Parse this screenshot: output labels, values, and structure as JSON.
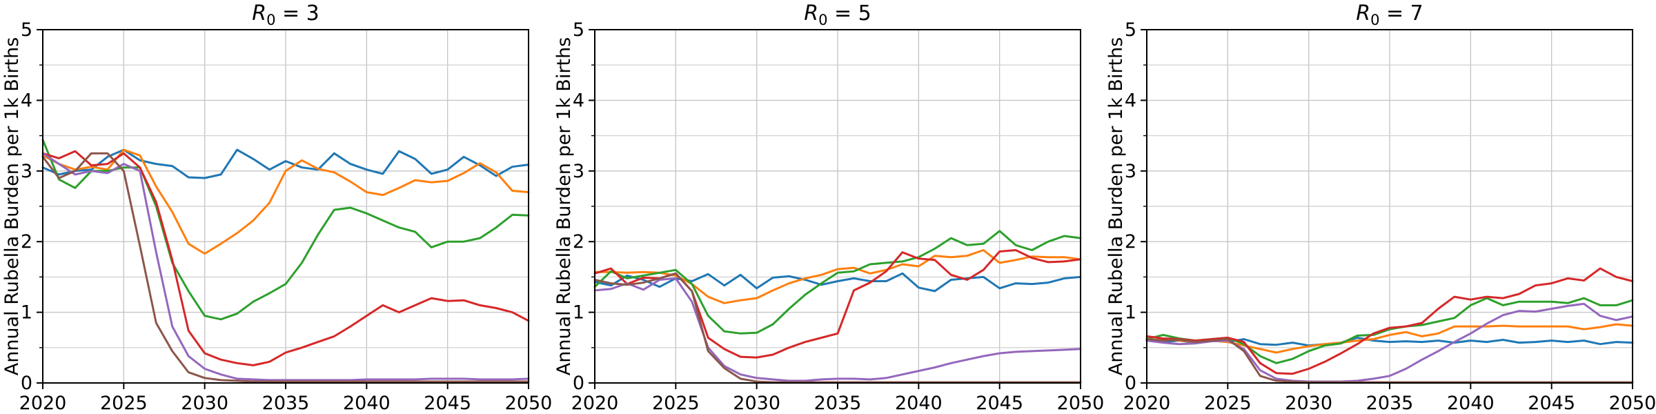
{
  "ylabel": "Annual Rubella Burden per 1k Births",
  "axes": {
    "xlim": [
      2020,
      2050
    ],
    "ylim": [
      0,
      5
    ],
    "x_ticks": [
      2020,
      2025,
      2030,
      2035,
      2040,
      2045,
      2050
    ],
    "y_ticks": [
      0,
      1,
      2,
      3,
      4,
      5
    ],
    "grid": {
      "x_step": 5,
      "y_step": 0.5,
      "major_color": "#c6c6c6",
      "minor_color": "#d4d4d4"
    },
    "spine_color": "#000000"
  },
  "chart_data": [
    {
      "type": "line",
      "title": "R₀ = 3",
      "title_parts": {
        "var": "R",
        "sub": "0",
        "eq": " = 3"
      },
      "x": [
        2020,
        2021,
        2022,
        2023,
        2024,
        2025,
        2026,
        2027,
        2028,
        2029,
        2030,
        2031,
        2032,
        2033,
        2034,
        2035,
        2036,
        2037,
        2038,
        2039,
        2040,
        2041,
        2042,
        2043,
        2044,
        2045,
        2046,
        2047,
        2048,
        2049,
        2050
      ],
      "series": [
        {
          "name": "blue",
          "color": "#1f77b4",
          "values": [
            3.05,
            2.95,
            3.0,
            3.02,
            3.2,
            3.3,
            3.15,
            3.1,
            3.07,
            2.91,
            2.9,
            2.95,
            3.3,
            3.17,
            3.02,
            3.14,
            3.05,
            3.02,
            3.25,
            3.1,
            3.02,
            2.96,
            3.28,
            3.17,
            2.96,
            3.02,
            3.2,
            3.08,
            2.93,
            3.06,
            3.09
          ]
        },
        {
          "name": "orange",
          "color": "#ff7f0e",
          "values": [
            3.22,
            3.1,
            3.02,
            3.06,
            3.02,
            3.3,
            3.22,
            2.78,
            2.42,
            1.97,
            1.83,
            1.97,
            2.12,
            2.3,
            2.55,
            3.0,
            3.15,
            3.03,
            2.98,
            2.85,
            2.7,
            2.66,
            2.76,
            2.87,
            2.84,
            2.86,
            2.97,
            3.11,
            2.98,
            2.72,
            2.7
          ]
        },
        {
          "name": "green",
          "color": "#2ca02c",
          "values": [
            3.44,
            2.88,
            2.76,
            3.0,
            3.0,
            3.05,
            3.05,
            2.5,
            1.7,
            1.3,
            0.95,
            0.9,
            0.98,
            1.15,
            1.27,
            1.4,
            1.7,
            2.1,
            2.45,
            2.48,
            2.4,
            2.3,
            2.2,
            2.14,
            1.92,
            2.0,
            2.0,
            2.05,
            2.2,
            2.38,
            2.37
          ]
        },
        {
          "name": "red",
          "color": "#d62728",
          "values": [
            3.25,
            3.18,
            3.28,
            3.08,
            3.1,
            3.25,
            3.05,
            2.56,
            1.74,
            0.74,
            0.42,
            0.33,
            0.28,
            0.25,
            0.3,
            0.43,
            0.5,
            0.58,
            0.66,
            0.8,
            0.95,
            1.1,
            1.0,
            1.1,
            1.2,
            1.16,
            1.17,
            1.1,
            1.06,
            1.0,
            0.88
          ]
        },
        {
          "name": "purple",
          "color": "#9467bd",
          "values": [
            3.25,
            3.1,
            2.95,
            3.0,
            2.97,
            3.1,
            3.0,
            1.85,
            0.8,
            0.38,
            0.2,
            0.12,
            0.06,
            0.05,
            0.04,
            0.04,
            0.04,
            0.04,
            0.04,
            0.04,
            0.05,
            0.05,
            0.05,
            0.05,
            0.06,
            0.06,
            0.06,
            0.05,
            0.05,
            0.05,
            0.06
          ]
        },
        {
          "name": "brown",
          "color": "#8c564b",
          "values": [
            3.2,
            2.9,
            3.0,
            3.25,
            3.25,
            3.0,
            1.94,
            0.85,
            0.45,
            0.15,
            0.07,
            0.04,
            0.03,
            0.02,
            0.02,
            0.02,
            0.02,
            0.02,
            0.02,
            0.02,
            0.02,
            0.02,
            0.02,
            0.02,
            0.02,
            0.02,
            0.02,
            0.02,
            0.02,
            0.02,
            0.02
          ]
        }
      ]
    },
    {
      "type": "line",
      "title": "R₀ = 5",
      "title_parts": {
        "var": "R",
        "sub": "0",
        "eq": " = 5"
      },
      "x": [
        2020,
        2021,
        2022,
        2023,
        2024,
        2025,
        2026,
        2027,
        2028,
        2029,
        2030,
        2031,
        2032,
        2033,
        2034,
        2035,
        2036,
        2037,
        2038,
        2039,
        2040,
        2041,
        2042,
        2043,
        2044,
        2045,
        2046,
        2047,
        2048,
        2049,
        2050
      ],
      "series": [
        {
          "name": "blue",
          "color": "#1f77b4",
          "values": [
            1.43,
            1.38,
            1.52,
            1.46,
            1.36,
            1.48,
            1.44,
            1.54,
            1.38,
            1.53,
            1.34,
            1.49,
            1.51,
            1.46,
            1.39,
            1.44,
            1.48,
            1.44,
            1.44,
            1.55,
            1.35,
            1.3,
            1.46,
            1.48,
            1.5,
            1.34,
            1.41,
            1.4,
            1.42,
            1.48,
            1.5
          ]
        },
        {
          "name": "orange",
          "color": "#ff7f0e",
          "values": [
            1.57,
            1.57,
            1.56,
            1.57,
            1.56,
            1.52,
            1.4,
            1.22,
            1.13,
            1.17,
            1.2,
            1.31,
            1.41,
            1.48,
            1.53,
            1.61,
            1.63,
            1.55,
            1.6,
            1.68,
            1.65,
            1.8,
            1.78,
            1.8,
            1.88,
            1.7,
            1.74,
            1.79,
            1.78,
            1.78,
            1.75
          ]
        },
        {
          "name": "green",
          "color": "#2ca02c",
          "values": [
            1.36,
            1.58,
            1.48,
            1.52,
            1.56,
            1.6,
            1.4,
            0.95,
            0.73,
            0.7,
            0.71,
            0.83,
            1.05,
            1.25,
            1.41,
            1.56,
            1.58,
            1.68,
            1.7,
            1.72,
            1.78,
            1.9,
            2.05,
            1.95,
            1.97,
            2.15,
            1.95,
            1.88,
            2.0,
            2.08,
            2.05
          ]
        },
        {
          "name": "red",
          "color": "#d62728",
          "values": [
            1.55,
            1.62,
            1.4,
            1.49,
            1.48,
            1.55,
            1.3,
            0.64,
            0.48,
            0.37,
            0.36,
            0.4,
            0.5,
            0.58,
            0.64,
            0.7,
            1.31,
            1.42,
            1.58,
            1.85,
            1.76,
            1.74,
            1.53,
            1.46,
            1.6,
            1.86,
            1.88,
            1.77,
            1.71,
            1.72,
            1.75
          ]
        },
        {
          "name": "purple",
          "color": "#9467bd",
          "values": [
            1.31,
            1.33,
            1.41,
            1.32,
            1.46,
            1.48,
            1.15,
            0.5,
            0.24,
            0.12,
            0.07,
            0.05,
            0.03,
            0.03,
            0.05,
            0.06,
            0.06,
            0.05,
            0.07,
            0.12,
            0.17,
            0.22,
            0.28,
            0.33,
            0.38,
            0.42,
            0.44,
            0.45,
            0.46,
            0.47,
            0.48
          ]
        },
        {
          "name": "brown",
          "color": "#8c564b",
          "values": [
            1.46,
            1.41,
            1.39,
            1.42,
            1.48,
            1.55,
            1.3,
            0.45,
            0.21,
            0.06,
            0.02,
            0.01,
            0.01,
            0.01,
            0.01,
            0.01,
            0.01,
            0.01,
            0.01,
            0.01,
            0.01,
            0.01,
            0.01,
            0.01,
            0.01,
            0.01,
            0.01,
            0.01,
            0.01,
            0.01,
            0.01
          ]
        }
      ]
    },
    {
      "type": "line",
      "title": "R₀ = 7",
      "title_parts": {
        "var": "R",
        "sub": "0",
        "eq": " = 7"
      },
      "x": [
        2020,
        2021,
        2022,
        2023,
        2024,
        2025,
        2026,
        2027,
        2028,
        2029,
        2030,
        2031,
        2032,
        2033,
        2034,
        2035,
        2036,
        2037,
        2038,
        2039,
        2040,
        2041,
        2042,
        2043,
        2044,
        2045,
        2046,
        2047,
        2048,
        2049,
        2050
      ],
      "series": [
        {
          "name": "blue",
          "color": "#1f77b4",
          "values": [
            0.6,
            0.58,
            0.6,
            0.57,
            0.6,
            0.58,
            0.62,
            0.55,
            0.54,
            0.57,
            0.53,
            0.55,
            0.57,
            0.64,
            0.6,
            0.58,
            0.59,
            0.58,
            0.6,
            0.57,
            0.6,
            0.58,
            0.61,
            0.57,
            0.58,
            0.6,
            0.58,
            0.6,
            0.55,
            0.58,
            0.57
          ]
        },
        {
          "name": "orange",
          "color": "#ff7f0e",
          "values": [
            0.6,
            0.62,
            0.6,
            0.58,
            0.6,
            0.58,
            0.53,
            0.48,
            0.43,
            0.48,
            0.52,
            0.55,
            0.57,
            0.6,
            0.62,
            0.68,
            0.72,
            0.66,
            0.7,
            0.8,
            0.8,
            0.8,
            0.81,
            0.8,
            0.8,
            0.8,
            0.8,
            0.76,
            0.79,
            0.83,
            0.81
          ]
        },
        {
          "name": "green",
          "color": "#2ca02c",
          "values": [
            0.62,
            0.68,
            0.63,
            0.6,
            0.62,
            0.64,
            0.55,
            0.38,
            0.28,
            0.34,
            0.45,
            0.53,
            0.56,
            0.67,
            0.68,
            0.76,
            0.8,
            0.82,
            0.87,
            0.92,
            1.1,
            1.2,
            1.1,
            1.15,
            1.15,
            1.15,
            1.13,
            1.2,
            1.1,
            1.1,
            1.17
          ]
        },
        {
          "name": "red",
          "color": "#d62728",
          "values": [
            0.66,
            0.63,
            0.62,
            0.6,
            0.62,
            0.64,
            0.58,
            0.28,
            0.14,
            0.13,
            0.2,
            0.3,
            0.42,
            0.55,
            0.7,
            0.78,
            0.8,
            0.85,
            1.05,
            1.22,
            1.18,
            1.22,
            1.2,
            1.26,
            1.38,
            1.41,
            1.48,
            1.45,
            1.62,
            1.5,
            1.44
          ]
        },
        {
          "name": "purple",
          "color": "#9467bd",
          "values": [
            0.6,
            0.57,
            0.55,
            0.56,
            0.59,
            0.6,
            0.48,
            0.18,
            0.06,
            0.03,
            0.02,
            0.02,
            0.02,
            0.03,
            0.06,
            0.1,
            0.2,
            0.33,
            0.45,
            0.58,
            0.7,
            0.84,
            0.96,
            1.02,
            1.01,
            1.05,
            1.09,
            1.12,
            0.95,
            0.89,
            0.94
          ]
        },
        {
          "name": "brown",
          "color": "#8c564b",
          "values": [
            0.62,
            0.6,
            0.61,
            0.58,
            0.6,
            0.62,
            0.45,
            0.1,
            0.03,
            0.02,
            0.01,
            0.01,
            0.01,
            0.01,
            0.01,
            0.01,
            0.01,
            0.01,
            0.01,
            0.01,
            0.01,
            0.01,
            0.01,
            0.01,
            0.01,
            0.01,
            0.01,
            0.01,
            0.01,
            0.01,
            0.01
          ]
        }
      ]
    }
  ]
}
